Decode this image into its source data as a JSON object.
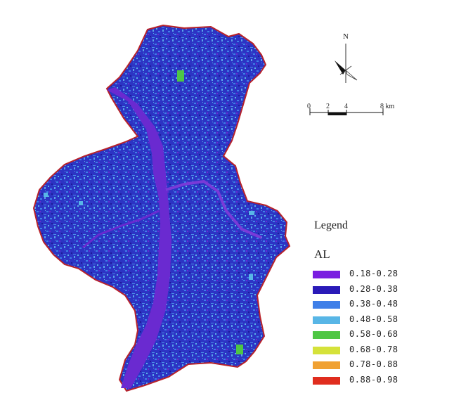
{
  "legend": {
    "title": "Legend",
    "variable": "AL",
    "classes": [
      {
        "label": "0.18-0.28",
        "color": "#7a1ee0"
      },
      {
        "label": "0.28-0.38",
        "color": "#2a1ab8"
      },
      {
        "label": "0.38-0.48",
        "color": "#3f7fe8"
      },
      {
        "label": "0.48-0.58",
        "color": "#58b6e6"
      },
      {
        "label": "0.58-0.68",
        "color": "#4ec644"
      },
      {
        "label": "0.68-0.78",
        "color": "#d5e23a"
      },
      {
        "label": "0.78-0.88",
        "color": "#f0a132"
      },
      {
        "label": "0.88-0.98",
        "color": "#e02d1e"
      }
    ]
  },
  "north_arrow": {
    "label": "N"
  },
  "scale_bar": {
    "ticks": [
      "0",
      "2",
      "4",
      "8 km"
    ]
  }
}
